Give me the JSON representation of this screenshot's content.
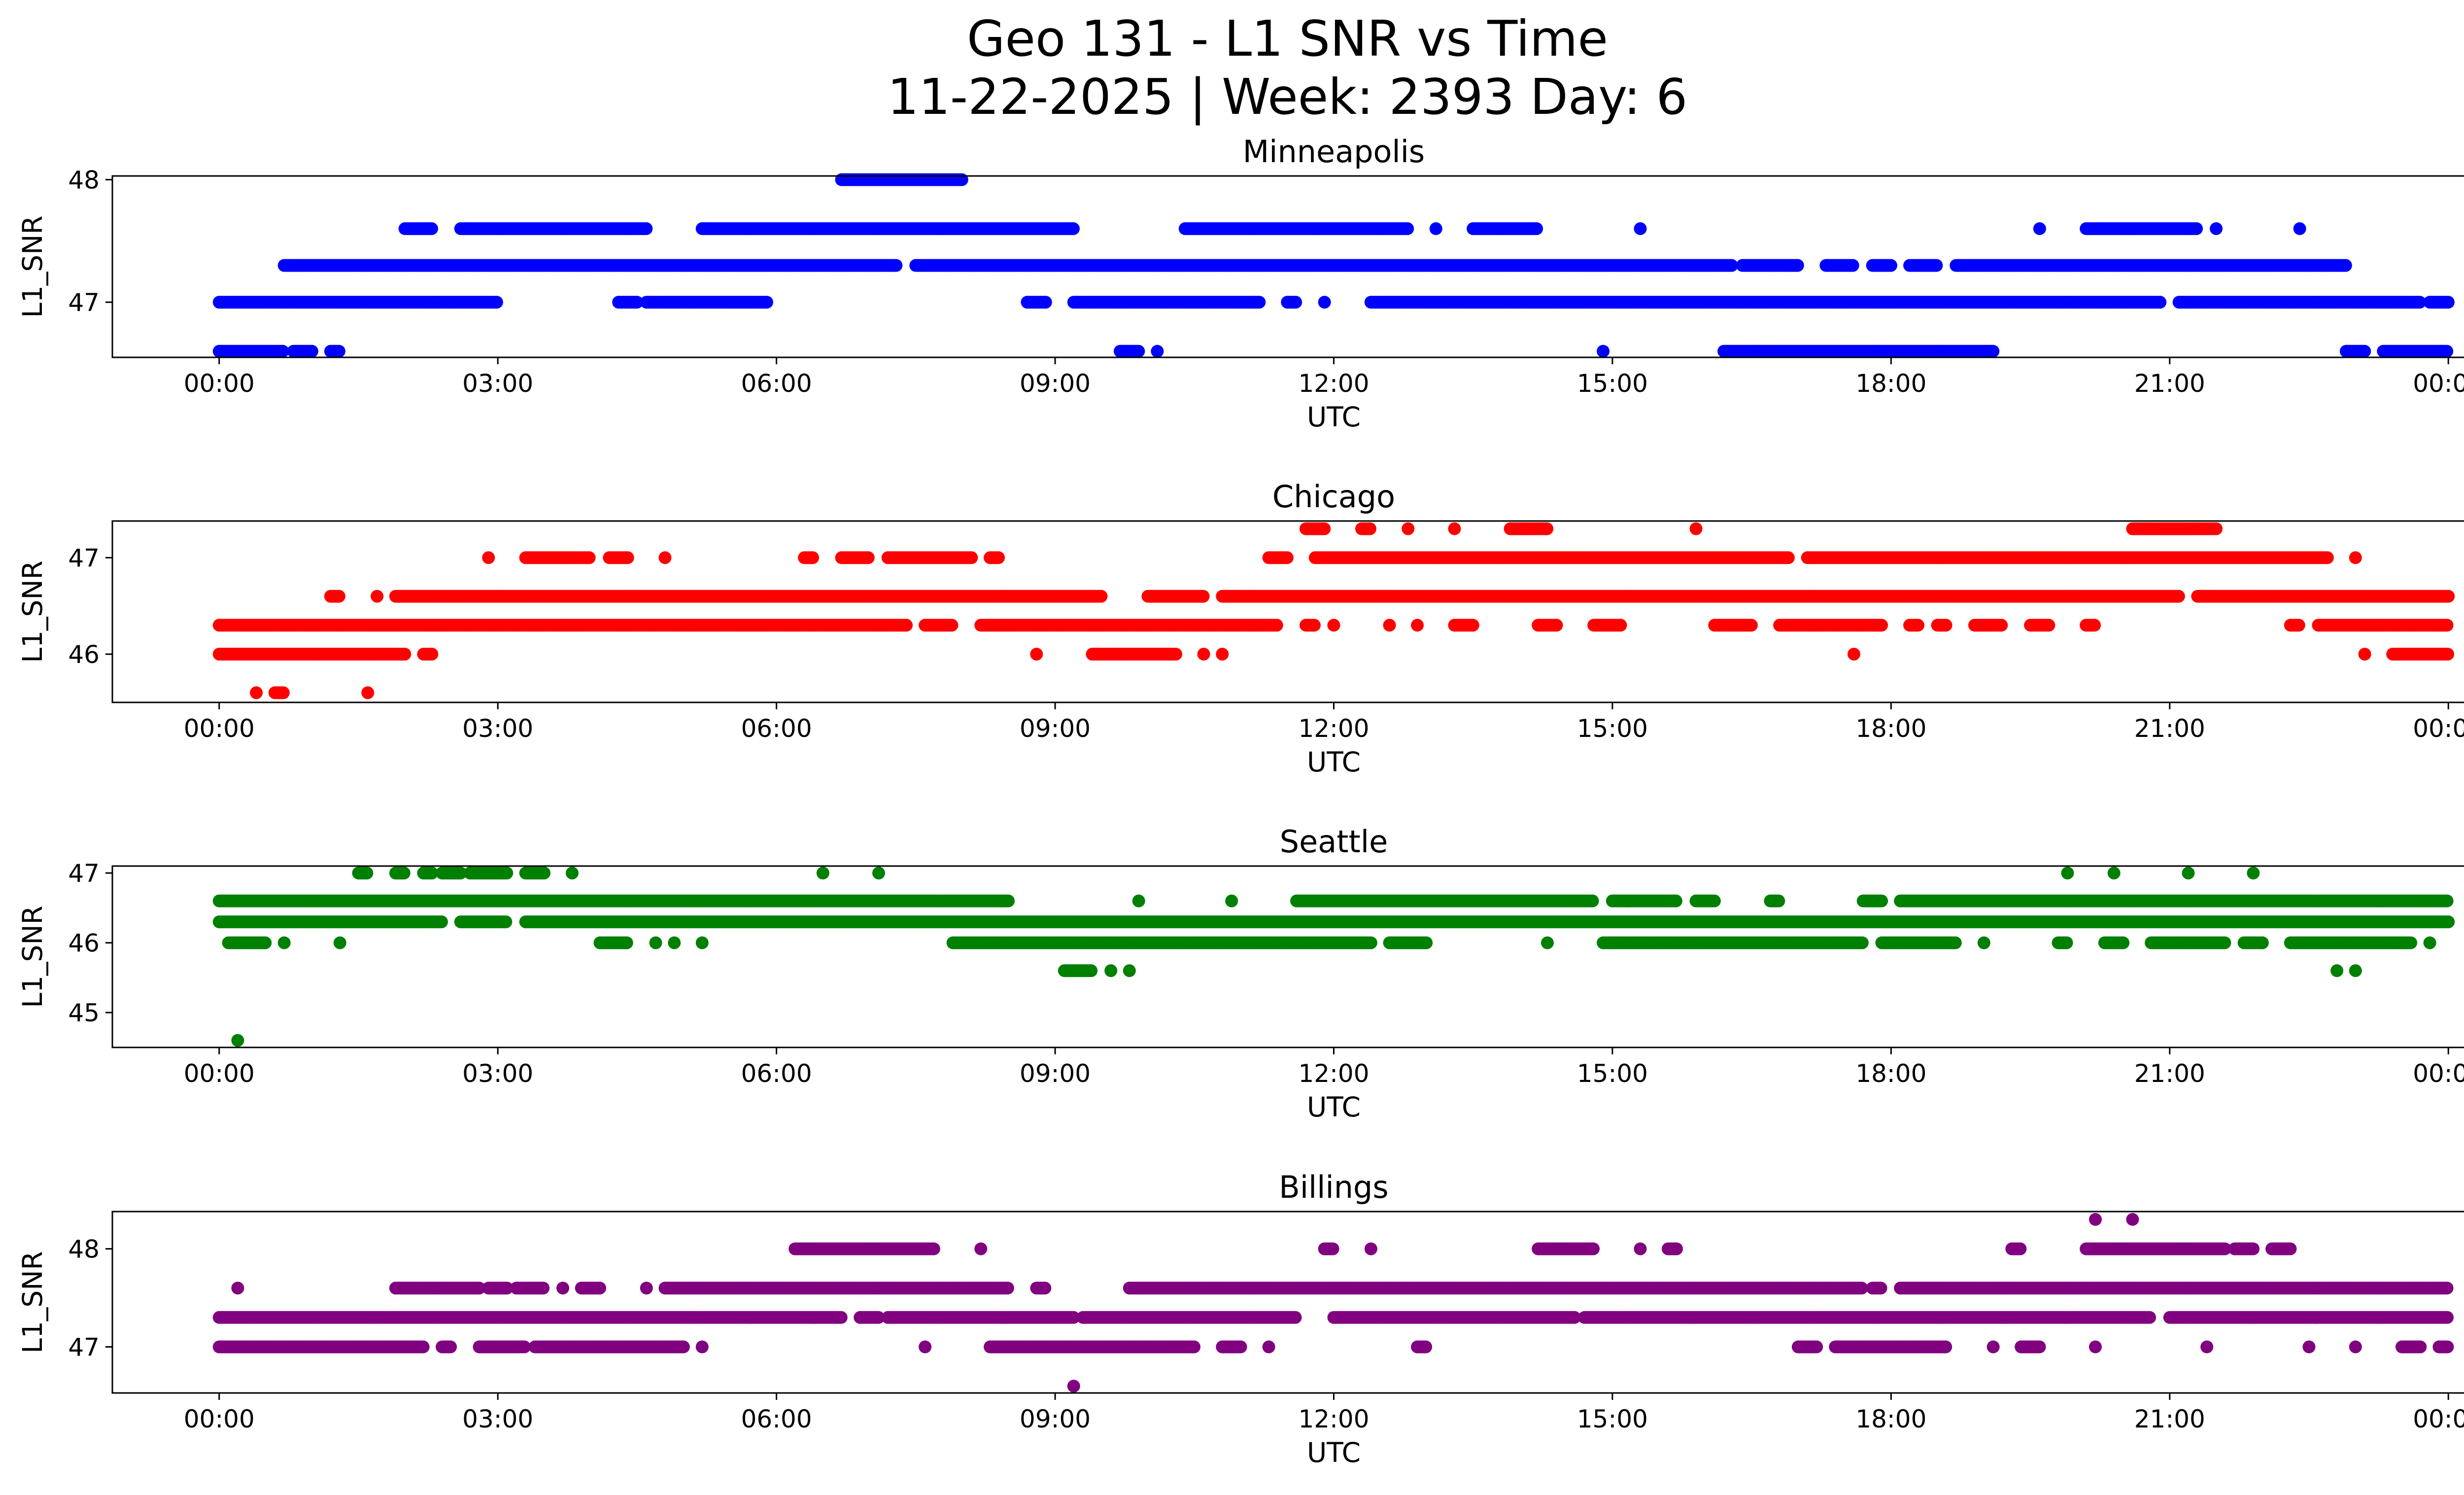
{
  "title": {
    "line1": "Geo 131 - L1 SNR vs Time",
    "line2": "11-22-2025 | Week: 2393 Day: 6"
  },
  "x_ticks": [
    "00:00",
    "03:00",
    "06:00",
    "09:00",
    "12:00",
    "15:00",
    "18:00",
    "21:00",
    "00:00"
  ],
  "chart_data": [
    {
      "type": "scatter",
      "title": "Minneapolis",
      "xlabel": "UTC",
      "ylabel": "L1_SNR",
      "color": "#0000ff",
      "x_unit": "hours UTC",
      "xlim": [
        -1.15,
        25.15
      ],
      "ylim": [
        46.55,
        48.03
      ],
      "yticks": [
        47,
        48
      ],
      "grid": false,
      "levels": [
        {
          "y": 48.0,
          "ranges": [
            [
              6.7,
              8.0
            ]
          ]
        },
        {
          "y": 47.6,
          "ranges": [
            [
              2.0,
              2.3
            ],
            [
              2.6,
              4.6
            ],
            [
              5.2,
              9.2
            ],
            [
              10.4,
              12.8
            ],
            [
              13.1,
              13.1
            ],
            [
              13.5,
              14.2
            ],
            [
              15.3,
              15.3
            ],
            [
              19.6,
              19.6
            ],
            [
              20.1,
              21.3
            ],
            [
              21.5,
              21.5
            ],
            [
              22.4,
              22.4
            ]
          ]
        },
        {
          "y": 47.3,
          "ranges": [
            [
              0.7,
              7.3
            ],
            [
              7.5,
              16.3
            ],
            [
              16.4,
              17.0
            ],
            [
              17.3,
              17.6
            ],
            [
              17.8,
              18.0
            ],
            [
              18.2,
              18.5
            ],
            [
              18.7,
              22.9
            ]
          ]
        },
        {
          "y": 47.0,
          "ranges": [
            [
              0.0,
              3.0
            ],
            [
              4.3,
              4.5
            ],
            [
              4.6,
              5.9
            ],
            [
              8.7,
              8.9
            ],
            [
              9.2,
              11.2
            ],
            [
              11.5,
              11.6
            ],
            [
              11.9,
              11.9
            ],
            [
              12.4,
              20.9
            ],
            [
              21.1,
              23.7
            ],
            [
              23.8,
              24.0
            ]
          ]
        },
        {
          "y": 46.6,
          "ranges": [
            [
              0.0,
              0.7
            ],
            [
              0.8,
              1.0
            ],
            [
              1.2,
              1.3
            ],
            [
              9.7,
              9.9
            ],
            [
              10.1,
              10.1
            ],
            [
              14.9,
              14.9
            ],
            [
              16.2,
              19.1
            ],
            [
              22.9,
              23.1
            ],
            [
              23.3,
              24.0
            ]
          ]
        }
      ]
    },
    {
      "type": "scatter",
      "title": "Chicago",
      "xlabel": "UTC",
      "ylabel": "L1_SNR",
      "color": "#ff0000",
      "x_unit": "hours UTC",
      "xlim": [
        -1.15,
        25.15
      ],
      "ylim": [
        45.5,
        47.38
      ],
      "yticks": [
        46,
        47
      ],
      "grid": false,
      "levels": [
        {
          "y": 47.3,
          "ranges": [
            [
              11.7,
              11.9
            ],
            [
              12.3,
              12.4
            ],
            [
              12.8,
              12.8
            ],
            [
              13.3,
              13.3
            ],
            [
              13.9,
              14.3
            ],
            [
              15.9,
              15.9
            ],
            [
              20.6,
              21.5
            ]
          ]
        },
        {
          "y": 47.0,
          "ranges": [
            [
              2.9,
              2.9
            ],
            [
              3.3,
              4.0
            ],
            [
              4.2,
              4.4
            ],
            [
              4.8,
              4.8
            ],
            [
              6.3,
              6.4
            ],
            [
              6.7,
              7.0
            ],
            [
              7.2,
              8.1
            ],
            [
              8.3,
              8.4
            ],
            [
              11.3,
              11.5
            ],
            [
              11.8,
              16.9
            ],
            [
              17.1,
              22.7
            ],
            [
              23.0,
              23.0
            ]
          ]
        },
        {
          "y": 46.6,
          "ranges": [
            [
              1.2,
              1.3
            ],
            [
              1.7,
              1.7
            ],
            [
              1.9,
              9.5
            ],
            [
              10.0,
              10.6
            ],
            [
              10.8,
              21.1
            ],
            [
              21.3,
              24.0
            ]
          ]
        },
        {
          "y": 46.3,
          "ranges": [
            [
              0.0,
              7.4
            ],
            [
              7.6,
              7.9
            ],
            [
              8.2,
              11.4
            ],
            [
              11.7,
              11.8
            ],
            [
              12.0,
              12.0
            ],
            [
              12.6,
              12.6
            ],
            [
              12.9,
              12.9
            ],
            [
              13.3,
              13.5
            ],
            [
              14.2,
              14.4
            ],
            [
              14.8,
              15.1
            ],
            [
              16.1,
              16.5
            ],
            [
              16.8,
              17.9
            ],
            [
              18.2,
              18.3
            ],
            [
              18.5,
              18.6
            ],
            [
              18.9,
              19.2
            ],
            [
              19.5,
              19.7
            ],
            [
              20.1,
              20.2
            ],
            [
              22.3,
              22.4
            ],
            [
              22.6,
              24.0
            ]
          ]
        },
        {
          "y": 46.0,
          "ranges": [
            [
              0.0,
              2.0
            ],
            [
              2.2,
              2.3
            ],
            [
              8.8,
              8.8
            ],
            [
              9.4,
              10.3
            ],
            [
              10.6,
              10.6
            ],
            [
              10.8,
              10.8
            ],
            [
              17.6,
              17.6
            ],
            [
              23.1,
              23.1
            ],
            [
              23.4,
              24.0
            ]
          ]
        },
        {
          "y": 45.6,
          "ranges": [
            [
              0.4,
              0.4
            ],
            [
              0.6,
              0.7
            ],
            [
              1.6,
              1.6
            ]
          ]
        }
      ]
    },
    {
      "type": "scatter",
      "title": "Seattle",
      "xlabel": "UTC",
      "ylabel": "L1_SNR",
      "color": "#008000",
      "x_unit": "hours UTC",
      "xlim": [
        -1.15,
        25.15
      ],
      "ylim": [
        44.5,
        47.1
      ],
      "yticks": [
        45,
        46,
        47
      ],
      "grid": false,
      "levels": [
        {
          "y": 47.0,
          "ranges": [
            [
              1.5,
              1.6
            ],
            [
              1.9,
              2.0
            ],
            [
              2.2,
              2.3
            ],
            [
              2.4,
              2.6
            ],
            [
              2.7,
              3.1
            ],
            [
              3.3,
              3.5
            ],
            [
              3.8,
              3.8
            ],
            [
              6.5,
              6.5
            ],
            [
              7.1,
              7.1
            ],
            [
              19.9,
              19.9
            ],
            [
              20.4,
              20.4
            ],
            [
              21.2,
              21.2
            ],
            [
              21.9,
              21.9
            ]
          ]
        },
        {
          "y": 46.6,
          "ranges": [
            [
              0.0,
              8.5
            ],
            [
              9.9,
              9.9
            ],
            [
              10.9,
              10.9
            ],
            [
              11.6,
              14.8
            ],
            [
              15.0,
              15.7
            ],
            [
              15.9,
              16.1
            ],
            [
              16.7,
              16.8
            ],
            [
              17.7,
              17.9
            ],
            [
              18.1,
              24.0
            ]
          ]
        },
        {
          "y": 46.3,
          "ranges": [
            [
              0.0,
              2.4
            ],
            [
              2.6,
              3.1
            ],
            [
              3.3,
              24.0
            ]
          ]
        },
        {
          "y": 46.0,
          "ranges": [
            [
              0.1,
              0.5
            ],
            [
              0.7,
              0.7
            ],
            [
              1.3,
              1.3
            ],
            [
              4.1,
              4.4
            ],
            [
              4.7,
              4.7
            ],
            [
              4.9,
              4.9
            ],
            [
              5.2,
              5.2
            ],
            [
              7.9,
              12.4
            ],
            [
              12.6,
              13.0
            ],
            [
              14.3,
              14.3
            ],
            [
              14.9,
              17.7
            ],
            [
              17.9,
              18.7
            ],
            [
              19.0,
              19.0
            ],
            [
              19.8,
              19.9
            ],
            [
              20.3,
              20.5
            ],
            [
              20.8,
              21.6
            ],
            [
              21.8,
              22.0
            ],
            [
              22.3,
              23.6
            ],
            [
              23.8,
              23.8
            ]
          ]
        },
        {
          "y": 45.6,
          "ranges": [
            [
              9.1,
              9.4
            ],
            [
              9.6,
              9.6
            ],
            [
              9.8,
              9.8
            ],
            [
              22.8,
              22.8
            ],
            [
              23.0,
              23.0
            ]
          ]
        },
        {
          "y": 44.6,
          "ranges": [
            [
              0.2,
              0.2
            ]
          ]
        }
      ]
    },
    {
      "type": "scatter",
      "title": "Billings",
      "xlabel": "UTC",
      "ylabel": "L1_SNR",
      "color": "#800080",
      "x_unit": "hours UTC",
      "xlim": [
        -1.15,
        25.15
      ],
      "ylim": [
        46.53,
        48.38
      ],
      "yticks": [
        47,
        48
      ],
      "grid": false,
      "levels": [
        {
          "y": 48.3,
          "ranges": [
            [
              20.2,
              20.2
            ],
            [
              20.6,
              20.6
            ]
          ]
        },
        {
          "y": 48.0,
          "ranges": [
            [
              6.2,
              7.7
            ],
            [
              8.2,
              8.2
            ],
            [
              11.9,
              12.0
            ],
            [
              12.4,
              12.4
            ],
            [
              14.2,
              14.8
            ],
            [
              15.3,
              15.3
            ],
            [
              15.6,
              15.7
            ],
            [
              19.3,
              19.4
            ],
            [
              20.1,
              21.6
            ],
            [
              21.7,
              21.9
            ],
            [
              22.1,
              22.3
            ]
          ]
        },
        {
          "y": 47.6,
          "ranges": [
            [
              0.2,
              0.2
            ],
            [
              1.9,
              2.8
            ],
            [
              2.9,
              3.1
            ],
            [
              3.2,
              3.5
            ],
            [
              3.7,
              3.7
            ],
            [
              3.9,
              4.1
            ],
            [
              4.6,
              4.6
            ],
            [
              4.8,
              8.5
            ],
            [
              8.8,
              8.9
            ],
            [
              9.8,
              17.7
            ],
            [
              17.8,
              17.9
            ],
            [
              18.1,
              24.0
            ]
          ]
        },
        {
          "y": 47.3,
          "ranges": [
            [
              0.0,
              6.7
            ],
            [
              6.9,
              7.1
            ],
            [
              7.2,
              9.2
            ],
            [
              9.3,
              11.6
            ],
            [
              12.0,
              14.6
            ],
            [
              14.7,
              20.8
            ],
            [
              21.0,
              24.0
            ]
          ]
        },
        {
          "y": 47.0,
          "ranges": [
            [
              0.0,
              2.2
            ],
            [
              2.4,
              2.5
            ],
            [
              2.8,
              3.3
            ],
            [
              3.4,
              3.9
            ],
            [
              3.9,
              5.0
            ],
            [
              5.2,
              5.2
            ],
            [
              7.6,
              7.6
            ],
            [
              8.3,
              10.5
            ],
            [
              10.8,
              11.0
            ],
            [
              11.3,
              11.3
            ],
            [
              12.9,
              13.0
            ],
            [
              17.0,
              17.2
            ],
            [
              17.4,
              18.6
            ],
            [
              19.1,
              19.1
            ],
            [
              19.4,
              19.6
            ],
            [
              20.2,
              20.2
            ],
            [
              21.4,
              21.4
            ],
            [
              22.5,
              22.5
            ],
            [
              23.0,
              23.0
            ],
            [
              23.5,
              23.7
            ],
            [
              23.9,
              24.0
            ]
          ]
        },
        {
          "y": 46.6,
          "ranges": [
            [
              9.2,
              9.2
            ]
          ]
        }
      ]
    }
  ]
}
